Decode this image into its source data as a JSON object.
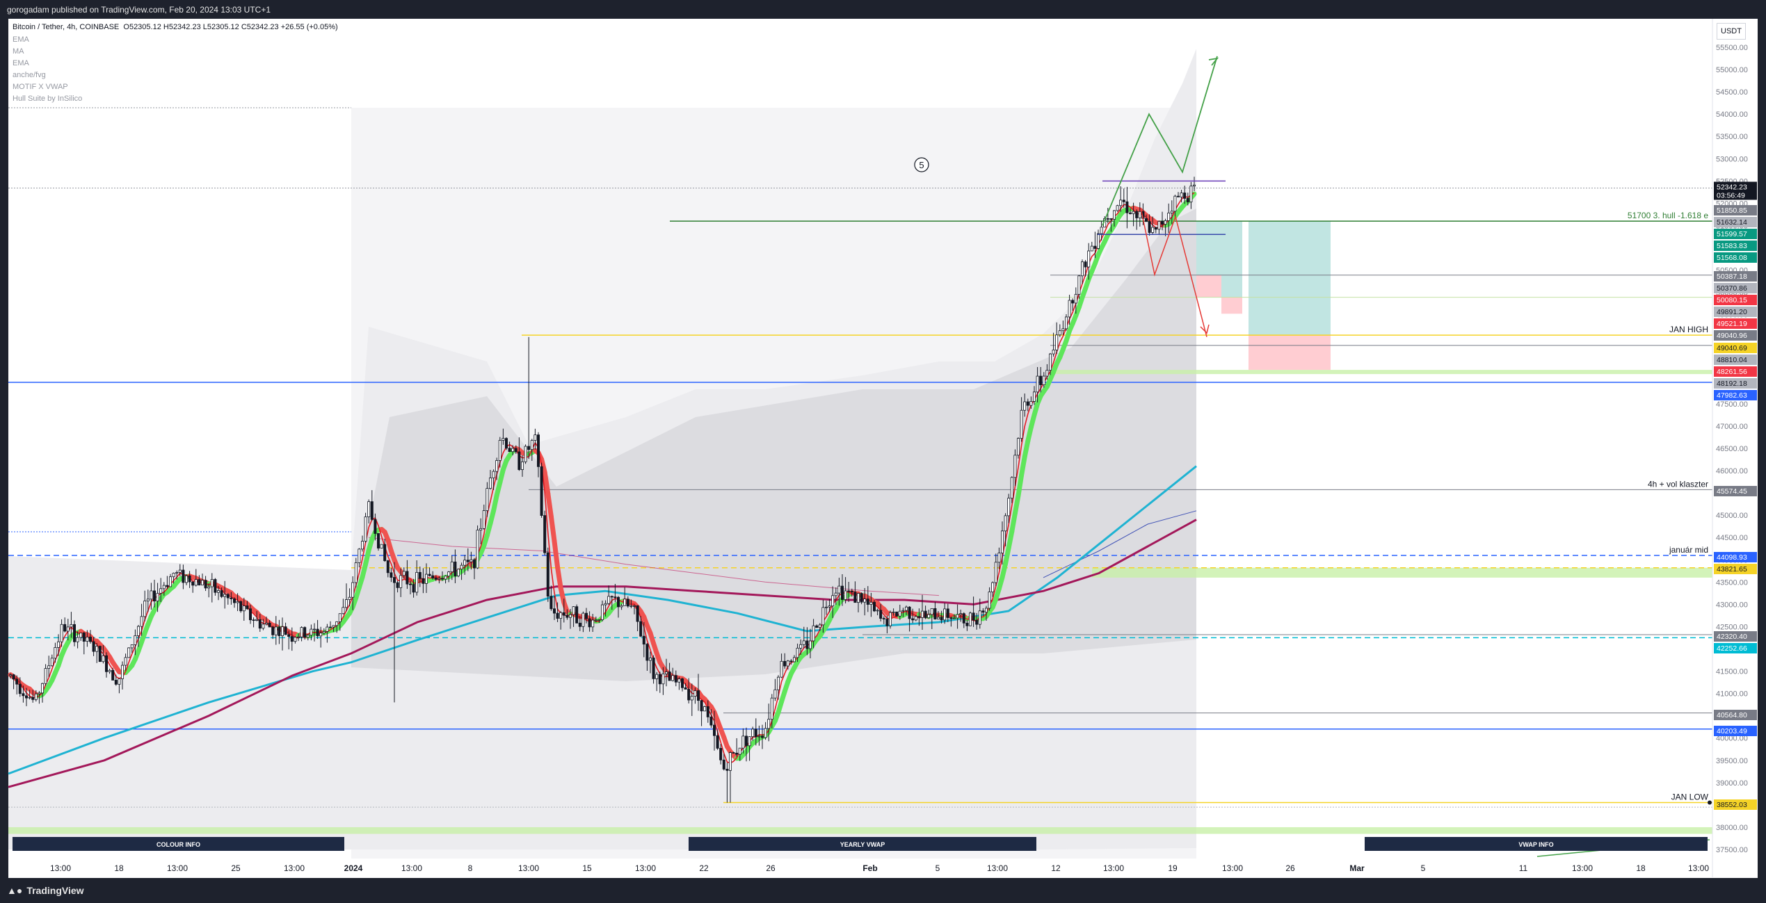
{
  "publish_line": "gorogadam published on TradingView.com, Feb 20, 2024 13:03 UTC+1",
  "brand": "TradingView",
  "currency_button": "USDT",
  "header": {
    "symbol": "Bitcoin / Tether, 4h, COINBASE",
    "ohlc": "O52305.12  H52342.23  L52305.12  C52342.23  +26.55 (+0.05%)"
  },
  "indicators": [
    "EMA",
    "MA",
    "EMA",
    "anche/fvg",
    "MOTIF X VWAP",
    "Hull Suite by InSilico"
  ],
  "wave_label": "5",
  "panel_labels": [
    "COLOUR INFO",
    "YEARLY VWAP",
    "VWAP INFO"
  ],
  "colors": {
    "up_candle": "#131722",
    "hull_up": "#5ee65a",
    "hull_down": "#ef5350",
    "ema_red": "#e31b23",
    "vwap_cyan": "#1fb3d2",
    "ema_maroon": "#a3185a",
    "blue_level": "#2962ff",
    "yellow_level": "#f5d327"
  },
  "chart_data": {
    "type": "candlestick",
    "symbol": "Bitcoin / Tether",
    "timeframe": "4h",
    "exchange": "COINBASE",
    "ylim": [
      37500,
      55500
    ],
    "y_ticks": [
      "55500.00",
      "55000.00",
      "54500.00",
      "54000.00",
      "53500.00",
      "53000.00",
      "52500.00",
      "52000.00",
      "51500.00",
      "51000.00",
      "50500.00",
      "50000.00",
      "49500.00",
      "49000.00",
      "48500.00",
      "48000.00",
      "47500.00",
      "47000.00",
      "46500.00",
      "46000.00",
      "45500.00",
      "45000.00",
      "44500.00",
      "44000.00",
      "43500.00",
      "43000.00",
      "42500.00",
      "42000.00",
      "41500.00",
      "41000.00",
      "40500.00",
      "40000.00",
      "39500.00",
      "39000.00",
      "38500.00",
      "38000.00",
      "37500.00"
    ],
    "x_ticks": [
      "13:00",
      "18",
      "13:00",
      "25",
      "13:00",
      "2024",
      "13:00",
      "8",
      "13:00",
      "15",
      "13:00",
      "22",
      "26",
      "Feb",
      "5",
      "13:00",
      "12",
      "13:00",
      "19",
      "13:00",
      "26",
      "Mar",
      "5",
      "11",
      "13:00",
      "18",
      "13:00"
    ],
    "close_price": {
      "value": "52342.23",
      "countdown": "03:56:49"
    },
    "price_tags": [
      {
        "value": "51850.85",
        "color": "#787b86"
      },
      {
        "value": "51632.14",
        "color": "#b2b5be"
      },
      {
        "value": "51599.57",
        "color": "#089981"
      },
      {
        "value": "51583.83",
        "color": "#089981"
      },
      {
        "value": "51568.08",
        "color": "#089981"
      },
      {
        "value": "50387.18",
        "color": "#787b86"
      },
      {
        "value": "50370.86",
        "color": "#b2b5be"
      },
      {
        "value": "50080.15",
        "color": "#f23645"
      },
      {
        "value": "49891.20",
        "color": "#b2b5be"
      },
      {
        "value": "49521.19",
        "color": "#f23645"
      },
      {
        "value": "49040.96",
        "color": "#787b86"
      },
      {
        "value": "49040.69",
        "color": "#f5d327"
      },
      {
        "value": "48810.04",
        "color": "#b2b5be"
      },
      {
        "value": "48261.56",
        "color": "#f23645"
      },
      {
        "value": "48192.18",
        "color": "#b2b5be"
      },
      {
        "value": "47982.63",
        "color": "#2962ff"
      },
      {
        "value": "45574.45",
        "color": "#787b86"
      },
      {
        "value": "44098.93",
        "color": "#2962ff"
      },
      {
        "value": "43821.65",
        "color": "#f5d327"
      },
      {
        "value": "42320.40",
        "color": "#787b86"
      },
      {
        "value": "42252.66",
        "color": "#00bcd4"
      },
      {
        "value": "40564.80",
        "color": "#787b86"
      },
      {
        "value": "40203.49",
        "color": "#2962ff"
      },
      {
        "value": "38552.03",
        "color": "#f5d327"
      }
    ],
    "level_labels": [
      {
        "text": "51700 3. hull -1.618 e",
        "value": 51599
      },
      {
        "text": "JAN HIGH",
        "value": 49040
      },
      {
        "text": "4h + vol klaszter",
        "value": 45574
      },
      {
        "text": "január mid",
        "value": 44098
      },
      {
        "text": "JAN LOW",
        "value": 38552
      }
    ]
  }
}
